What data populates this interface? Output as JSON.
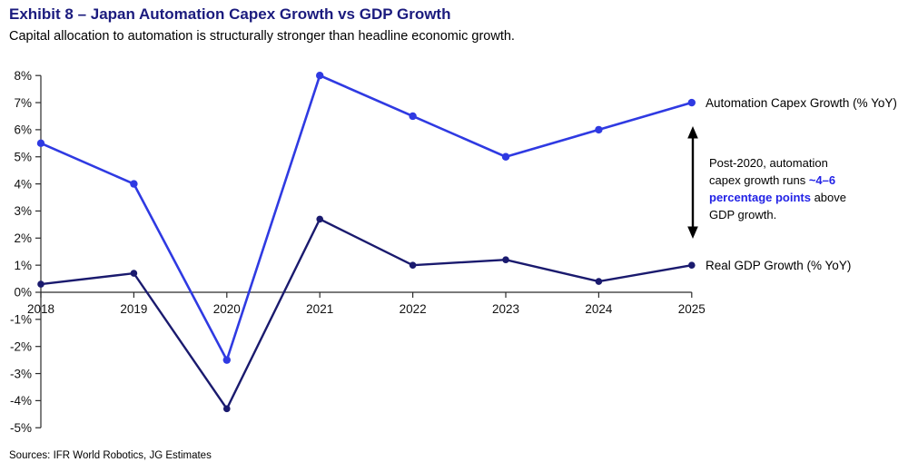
{
  "header": {
    "title": "Exhibit 8 – Japan Automation Capex Growth vs GDP Growth",
    "subtitle": "Capital allocation to automation is structurally stronger than headline economic growth."
  },
  "colors": {
    "title_navy": "#1b1b7e",
    "capex_blue": "#2f3ae2",
    "gdp_navy": "#1a1a6e",
    "annotation_highlight_blue": "#2222e6",
    "axis_black": "#2b2b2b"
  },
  "chart_data": {
    "type": "line",
    "categories": [
      "2018",
      "2019",
      "2020",
      "2021",
      "2022",
      "2023",
      "2024",
      "2025"
    ],
    "series": [
      {
        "name": "Automation Capex Growth (% YoY)",
        "color": "#2f3ae2",
        "values": [
          5.5,
          4.0,
          -2.5,
          8.0,
          6.5,
          5.0,
          6.0,
          7.0
        ]
      },
      {
        "name": "Real GDP Growth (% YoY)",
        "color": "#1a1a6e",
        "values": [
          0.3,
          0.7,
          -4.3,
          2.7,
          1.0,
          1.2,
          0.4,
          1.0
        ]
      }
    ],
    "ylim": [
      -5,
      8
    ],
    "ytick_step": 1,
    "ytick_suffix": "%",
    "xlabel": "",
    "ylabel": "",
    "grid": false,
    "legend_position": "labels at right end of each line"
  },
  "annotation": {
    "text_parts": [
      {
        "text": "Post-2020, automation capex growth runs ",
        "highlight": false
      },
      {
        "text": "~4–6 percentage points",
        "highlight": true
      },
      {
        "text": " above GDP growth.",
        "highlight": false
      }
    ],
    "arrow": "vertical double-headed arrow spanning capex-to-GDP gap"
  },
  "footer": {
    "sources": "Sources: IFR World Robotics, JG Estimates"
  }
}
